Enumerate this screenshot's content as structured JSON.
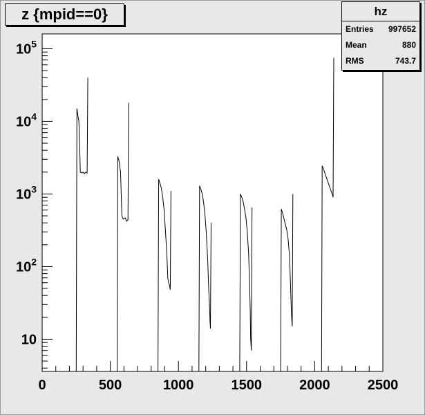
{
  "title": "z {mpid==0}",
  "stats": {
    "name": "hz",
    "rows": [
      {
        "label": "Entries",
        "value": "997652"
      },
      {
        "label": "Mean",
        "value": "880"
      },
      {
        "label": "RMS",
        "value": "743.7"
      }
    ]
  },
  "chart_data": {
    "type": "line",
    "title": "z {mpid==0}",
    "xlabel": "",
    "ylabel": "",
    "xlim": [
      0,
      2500
    ],
    "ylim": [
      3.6,
      160000
    ],
    "yscale": "log",
    "grid": false,
    "x_ticks": [
      "0",
      "500",
      "1000",
      "1500",
      "2000",
      "2500"
    ],
    "y_ticks": [
      {
        "value": 10,
        "label": "10"
      },
      {
        "value": 100,
        "base": "10",
        "exp": "2"
      },
      {
        "value": 1000,
        "base": "10",
        "exp": "3"
      },
      {
        "value": 10000,
        "base": "10",
        "exp": "4"
      },
      {
        "value": 100000,
        "base": "10",
        "exp": "5"
      }
    ],
    "series": [
      {
        "x": [
          250,
          255,
          262,
          270,
          275,
          280,
          290,
          300,
          310,
          320,
          330,
          335
        ],
        "y": [
          3.6,
          15000,
          12000,
          10000,
          5000,
          2000,
          1950,
          2000,
          1900,
          2000,
          1950,
          40000
        ]
      },
      {
        "x": [
          550,
          555,
          565,
          575,
          580,
          585,
          595,
          610,
          620,
          630,
          635
        ],
        "y": [
          3.6,
          3300,
          2800,
          2000,
          1000,
          500,
          450,
          470,
          420,
          440,
          18000
        ]
      },
      {
        "x": [
          850,
          855,
          865,
          875,
          885,
          895,
          905,
          915,
          922,
          928,
          935,
          940,
          945
        ],
        "y": [
          3.6,
          1600,
          1400,
          1200,
          900,
          600,
          300,
          150,
          70,
          60,
          55,
          48,
          1100
        ]
      },
      {
        "x": [
          1150,
          1155,
          1165,
          1175,
          1185,
          1195,
          1205,
          1215,
          1222,
          1228,
          1232,
          1235,
          1240
        ],
        "y": [
          3.6,
          1300,
          1150,
          1000,
          750,
          500,
          280,
          120,
          50,
          28,
          17,
          14,
          400
        ]
      },
      {
        "x": [
          1450,
          1455,
          1465,
          1475,
          1485,
          1495,
          1505,
          1515,
          1522,
          1527,
          1530,
          1535,
          1540
        ],
        "y": [
          3.6,
          1000,
          900,
          780,
          620,
          480,
          300,
          150,
          60,
          25,
          10,
          7,
          650
        ]
      },
      {
        "x": [
          1750,
          1755,
          1765,
          1775,
          1785,
          1795,
          1805,
          1815,
          1822,
          1827,
          1832,
          1835,
          1840
        ],
        "y": [
          3.6,
          620,
          540,
          450,
          380,
          320,
          240,
          140,
          60,
          30,
          18,
          15,
          1000
        ]
      },
      {
        "x": [
          2050,
          2055,
          2065,
          2080,
          2095,
          2110,
          2120,
          2130,
          2135,
          2140
        ],
        "y": [
          3.6,
          2450,
          2200,
          1800,
          1500,
          1250,
          1100,
          980,
          900,
          75000
        ]
      }
    ]
  }
}
